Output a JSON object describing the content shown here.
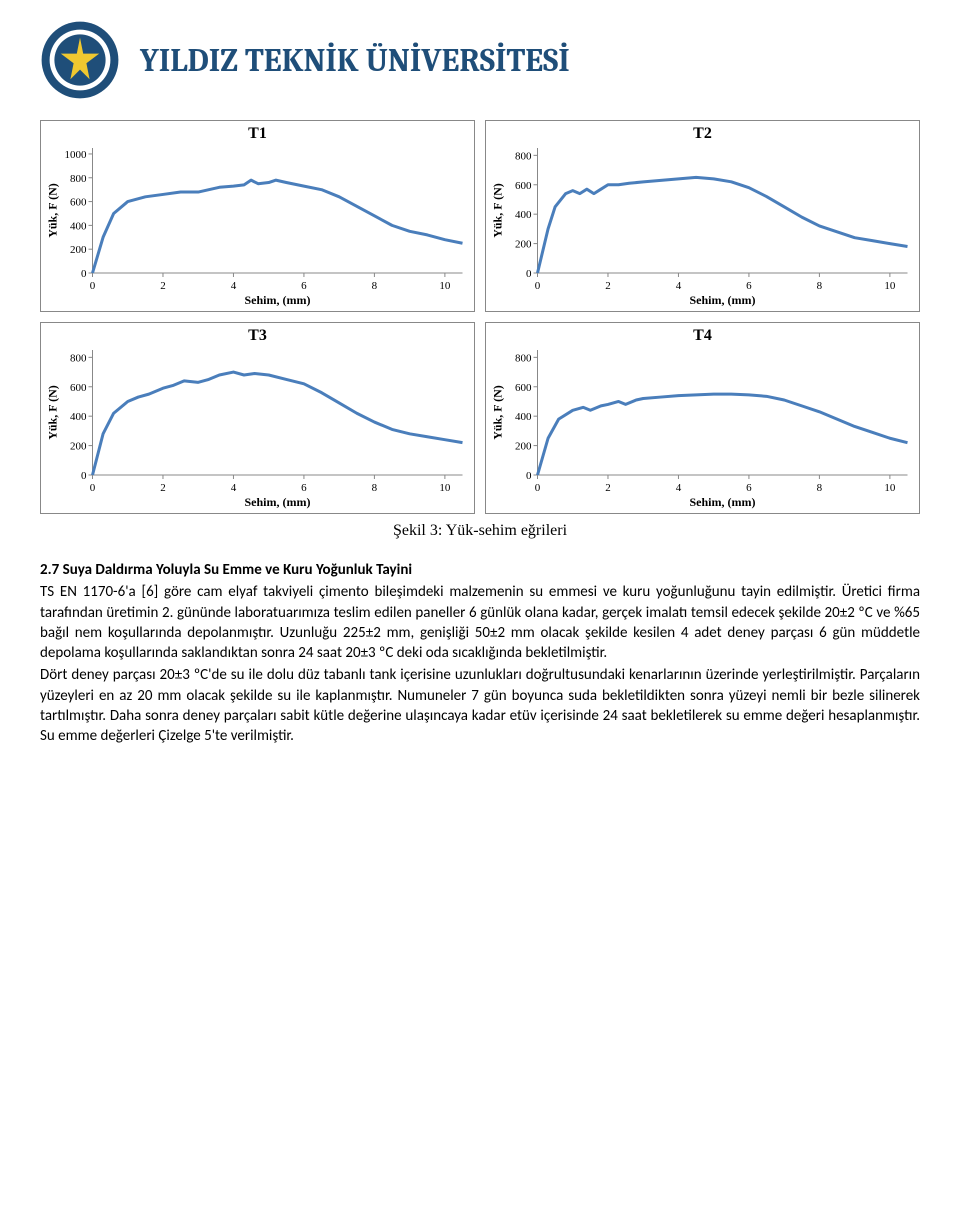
{
  "header": {
    "title": "YILDIZ TEKNİK ÜNİVERSİTESİ",
    "title_color": "#1f4e79",
    "logo_colors": {
      "outer": "#1f4e79",
      "inner": "#ffffff",
      "star": "#f0c830"
    }
  },
  "charts": {
    "line_color": "#4a7ebb",
    "line_width": 3,
    "grid_color": "none",
    "bg_color": "#ffffff",
    "tick_fontsize": 11,
    "label_fontsize": 12,
    "xlabel": "Sehim, (mm)",
    "ylabel": "Yük, F (N)",
    "xlim": [
      0,
      10.5
    ],
    "xticks": [
      0,
      2,
      4,
      6,
      8,
      10
    ],
    "panels": [
      {
        "title": "T1",
        "ylim": [
          0,
          1050
        ],
        "yticks": [
          0,
          200,
          400,
          600,
          800,
          1000
        ],
        "points": [
          [
            0,
            0
          ],
          [
            0.3,
            300
          ],
          [
            0.6,
            500
          ],
          [
            1.0,
            600
          ],
          [
            1.5,
            640
          ],
          [
            2.0,
            660
          ],
          [
            2.5,
            680
          ],
          [
            3.0,
            680
          ],
          [
            3.3,
            700
          ],
          [
            3.6,
            720
          ],
          [
            4.0,
            730
          ],
          [
            4.3,
            740
          ],
          [
            4.5,
            780
          ],
          [
            4.7,
            750
          ],
          [
            5.0,
            760
          ],
          [
            5.2,
            780
          ],
          [
            5.5,
            760
          ],
          [
            6.0,
            730
          ],
          [
            6.5,
            700
          ],
          [
            7.0,
            640
          ],
          [
            7.5,
            560
          ],
          [
            8.0,
            480
          ],
          [
            8.5,
            400
          ],
          [
            9.0,
            350
          ],
          [
            9.5,
            320
          ],
          [
            10.0,
            280
          ],
          [
            10.5,
            250
          ]
        ]
      },
      {
        "title": "T2",
        "ylim": [
          0,
          850
        ],
        "yticks": [
          0,
          200,
          400,
          600,
          800
        ],
        "points": [
          [
            0,
            0
          ],
          [
            0.3,
            300
          ],
          [
            0.5,
            450
          ],
          [
            0.8,
            540
          ],
          [
            1.0,
            560
          ],
          [
            1.2,
            540
          ],
          [
            1.4,
            570
          ],
          [
            1.6,
            540
          ],
          [
            1.8,
            570
          ],
          [
            2.0,
            600
          ],
          [
            2.3,
            600
          ],
          [
            2.6,
            610
          ],
          [
            3.0,
            620
          ],
          [
            3.5,
            630
          ],
          [
            4.0,
            640
          ],
          [
            4.5,
            650
          ],
          [
            5.0,
            640
          ],
          [
            5.5,
            620
          ],
          [
            6.0,
            580
          ],
          [
            6.5,
            520
          ],
          [
            7.0,
            450
          ],
          [
            7.5,
            380
          ],
          [
            8.0,
            320
          ],
          [
            8.5,
            280
          ],
          [
            9.0,
            240
          ],
          [
            9.5,
            220
          ],
          [
            10.0,
            200
          ],
          [
            10.5,
            180
          ]
        ]
      },
      {
        "title": "T3",
        "ylim": [
          0,
          850
        ],
        "yticks": [
          0,
          200,
          400,
          600,
          800
        ],
        "points": [
          [
            0,
            0
          ],
          [
            0.3,
            280
          ],
          [
            0.6,
            420
          ],
          [
            1.0,
            500
          ],
          [
            1.3,
            530
          ],
          [
            1.6,
            550
          ],
          [
            2.0,
            590
          ],
          [
            2.3,
            610
          ],
          [
            2.6,
            640
          ],
          [
            3.0,
            630
          ],
          [
            3.3,
            650
          ],
          [
            3.6,
            680
          ],
          [
            4.0,
            700
          ],
          [
            4.3,
            680
          ],
          [
            4.6,
            690
          ],
          [
            5.0,
            680
          ],
          [
            5.5,
            650
          ],
          [
            6.0,
            620
          ],
          [
            6.5,
            560
          ],
          [
            7.0,
            490
          ],
          [
            7.5,
            420
          ],
          [
            8.0,
            360
          ],
          [
            8.5,
            310
          ],
          [
            9.0,
            280
          ],
          [
            9.5,
            260
          ],
          [
            10.0,
            240
          ],
          [
            10.5,
            220
          ]
        ]
      },
      {
        "title": "T4",
        "ylim": [
          0,
          850
        ],
        "yticks": [
          0,
          200,
          400,
          600,
          800
        ],
        "points": [
          [
            0,
            0
          ],
          [
            0.3,
            250
          ],
          [
            0.6,
            380
          ],
          [
            1.0,
            440
          ],
          [
            1.3,
            460
          ],
          [
            1.5,
            440
          ],
          [
            1.8,
            470
          ],
          [
            2.0,
            480
          ],
          [
            2.3,
            500
          ],
          [
            2.5,
            480
          ],
          [
            2.8,
            510
          ],
          [
            3.0,
            520
          ],
          [
            3.5,
            530
          ],
          [
            4.0,
            540
          ],
          [
            4.5,
            545
          ],
          [
            5.0,
            550
          ],
          [
            5.5,
            550
          ],
          [
            6.0,
            545
          ],
          [
            6.5,
            535
          ],
          [
            7.0,
            510
          ],
          [
            7.5,
            470
          ],
          [
            8.0,
            430
          ],
          [
            8.5,
            380
          ],
          [
            9.0,
            330
          ],
          [
            9.5,
            290
          ],
          [
            10.0,
            250
          ],
          [
            10.5,
            220
          ]
        ]
      }
    ]
  },
  "figure_caption": "Şekil 3: Yük-sehim eğrileri",
  "section": {
    "heading": "2.7 Suya Daldırma Yoluyla Su Emme ve Kuru Yoğunluk Tayini",
    "paragraph": "TS EN 1170-6'a [6] göre cam elyaf takviyeli çimento bileşimdeki malzemenin su emmesi ve kuru yoğunluğunu tayin edilmiştir. Üretici firma tarafından üretimin 2. gününde laboratuarımıza teslim edilen paneller 6 günlük olana kadar, gerçek imalatı temsil edecek şekilde 20±2 ºC ve %65 bağıl nem koşullarında depolanmıştır. Uzunluğu 225±2 mm, genişliği 50±2 mm olacak şekilde kesilen 4 adet deney parçası 6 gün müddetle depolama koşullarında saklandıktan sonra 24 saat 20±3 ºC deki oda sıcaklığında bekletilmiştir.",
    "paragraph2": "Dört deney parçası 20±3 ºC'de su ile dolu düz tabanlı tank içerisine uzunlukları doğrultusundaki kenarlarının üzerinde yerleştirilmiştir. Parçaların yüzeyleri en az 20 mm olacak şekilde su ile kaplanmıştır. Numuneler 7 gün boyunca suda bekletildikten sonra yüzeyi nemli bir bezle silinerek tartılmıştır. Daha sonra deney parçaları sabit kütle değerine ulaşıncaya kadar etüv içerisinde 24 saat bekletilerek su emme değeri hesaplanmıştır. Su emme değerleri Çizelge 5'te verilmiştir."
  }
}
